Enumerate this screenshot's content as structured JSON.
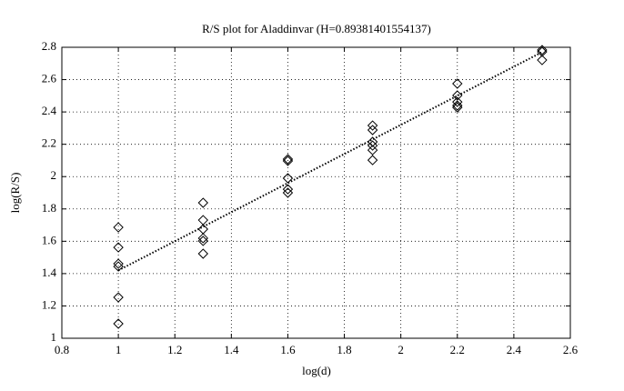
{
  "chart_data": {
    "type": "scatter",
    "title": "R/S plot for Aladdinvar (H=0.89381401554137)",
    "xlabel": "log(d)",
    "ylabel": "log(R/S)",
    "xlim": [
      0.8,
      2.6
    ],
    "xticks": [
      0.8,
      1,
      1.2,
      1.4,
      1.6,
      1.8,
      2,
      2.2,
      2.4,
      2.6
    ],
    "ylim": [
      1,
      2.8
    ],
    "yticks": [
      1,
      1.2,
      1.4,
      1.6,
      1.8,
      2,
      2.2,
      2.4,
      2.6,
      2.8
    ],
    "grid": true,
    "series": [
      {
        "type": "scatter",
        "marker": "diamond",
        "color": "#000000",
        "x": [
          1,
          1,
          1,
          1,
          1,
          1,
          1.3,
          1.3,
          1.3,
          1.3,
          1.3,
          1.3,
          1.6,
          1.6,
          1.6,
          1.6,
          1.6,
          1.9,
          1.9,
          1.9,
          1.9,
          1.9,
          1.9,
          2.2,
          2.2,
          2.2,
          2.2,
          2.2,
          2.5,
          2.5,
          2.5
        ],
        "values": [
          1.686,
          1.562,
          1.461,
          1.444,
          1.253,
          1.09,
          1.838,
          1.731,
          1.675,
          1.619,
          1.602,
          1.523,
          2.108,
          2.097,
          1.99,
          1.922,
          1.9,
          2.316,
          2.288,
          2.215,
          2.192,
          2.164,
          2.102,
          2.575,
          2.502,
          2.462,
          2.44,
          2.428,
          2.783,
          2.772,
          2.721
        ]
      },
      {
        "type": "line",
        "linestyle": "dotted",
        "color": "#000000",
        "x": [
          1,
          2.5
        ],
        "values": [
          1.42,
          2.77
        ]
      }
    ]
  }
}
